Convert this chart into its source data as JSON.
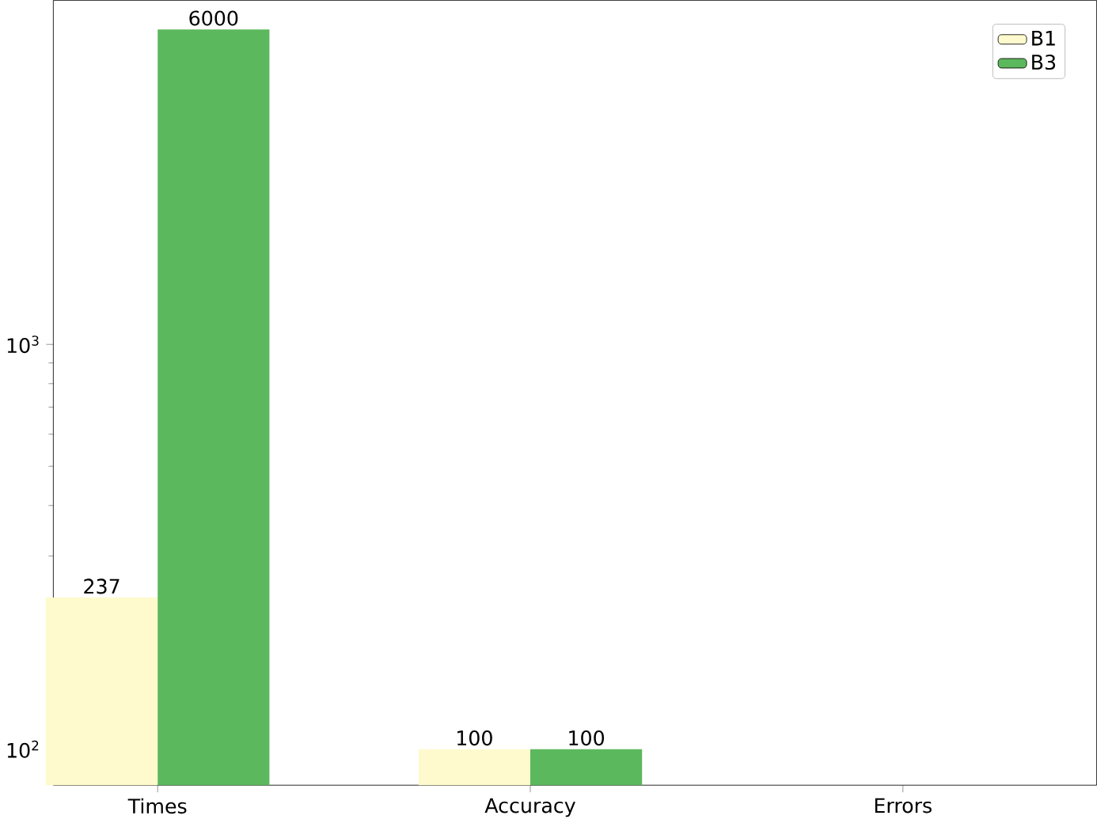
{
  "chart_data": {
    "type": "bar",
    "categories": [
      "Times",
      "Accuracy",
      "Errors"
    ],
    "series": [
      {
        "name": "B1",
        "color": "#fffacd",
        "values": [
          237,
          100,
          null
        ]
      },
      {
        "name": "B3",
        "color": "#5cb85c",
        "values": [
          6000,
          100,
          null
        ]
      }
    ],
    "log": "y",
    "ylim": [
      81.5,
      7080
    ],
    "yticks": [
      {
        "value": 100,
        "label": "10$^{2}$"
      },
      {
        "value": 1000,
        "label": "10$^{3}$"
      }
    ],
    "data_labels": true,
    "legend": "top right",
    "grid": false
  }
}
